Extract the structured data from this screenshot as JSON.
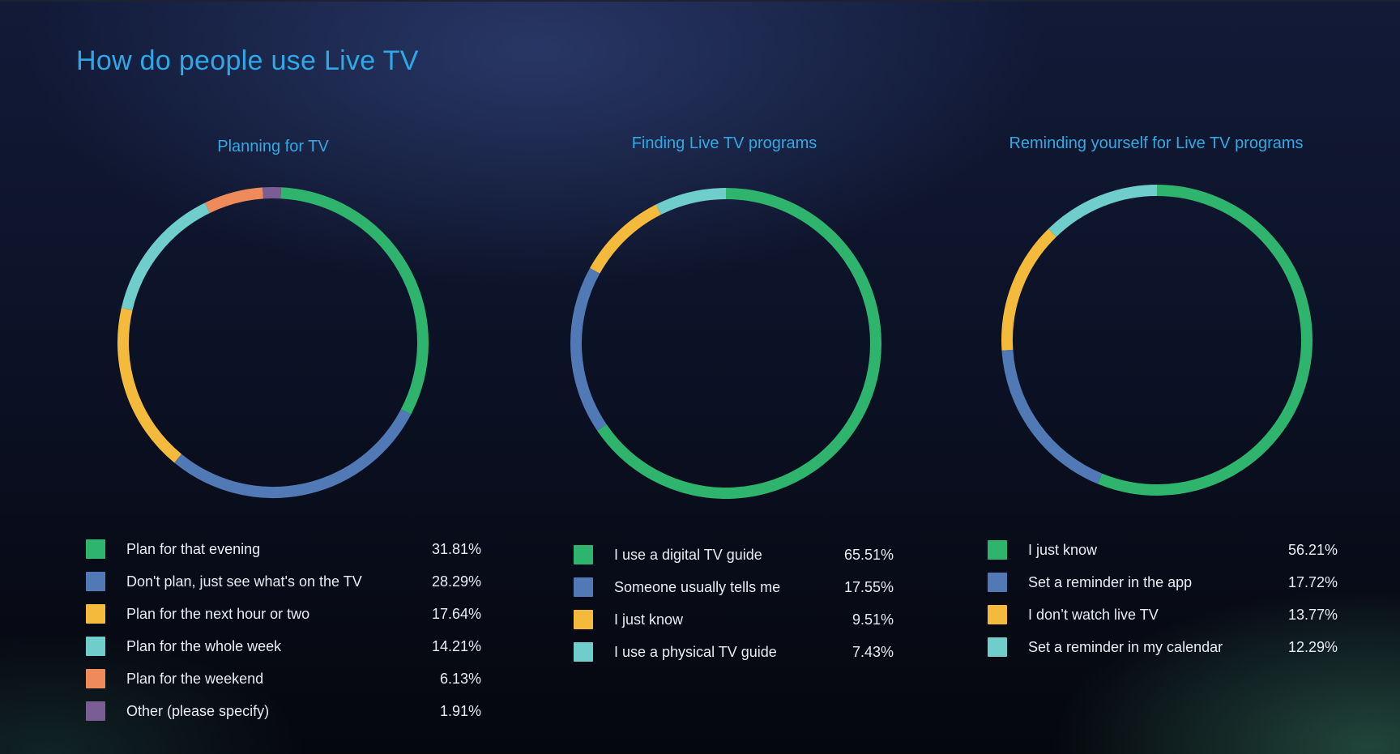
{
  "page": {
    "title": "How do people use Live TV"
  },
  "colors": {
    "green": "#2fb46d",
    "blue": "#5079b5",
    "yellow": "#f4ba3b",
    "teal": "#6fcdcb",
    "orange": "#ef8a5a",
    "purple": "#7b5d95",
    "title_blue": "#2ea8e6",
    "text": "#e8ecf4"
  },
  "chart_data": [
    {
      "type": "pie",
      "title": "Planning for TV",
      "categories": [
        "Plan for that evening",
        "Don't plan, just see what's on the TV",
        "Plan for the next hour or two",
        "Plan for the whole week",
        "Plan for the weekend",
        "Other (please specify)"
      ],
      "values": [
        31.81,
        28.29,
        17.64,
        14.21,
        6.13,
        1.91
      ],
      "labels": [
        "31.81%",
        "28.29%",
        "17.64%",
        "14.21%",
        "6.13%",
        "1.91%"
      ],
      "colors": [
        "#2fb46d",
        "#5079b5",
        "#f4ba3b",
        "#6fcdcb",
        "#ef8a5a",
        "#7b5d95"
      ],
      "start_angle": 3
    },
    {
      "type": "pie",
      "title": "Finding Live TV programs",
      "categories": [
        "I use a digital TV guide",
        "Someone usually tells me",
        "I just know",
        "I use a physical TV guide"
      ],
      "values": [
        65.51,
        17.55,
        9.51,
        7.43
      ],
      "labels": [
        "65.51%",
        "17.55%",
        "9.51%",
        "7.43%"
      ],
      "colors": [
        "#2fb46d",
        "#5079b5",
        "#f4ba3b",
        "#6fcdcb"
      ],
      "start_angle": 0
    },
    {
      "type": "pie",
      "title": "Reminding yourself for Live TV programs",
      "categories": [
        "I just know",
        "Set a reminder in the app",
        "I don’t watch live TV",
        "Set a reminder in my calendar"
      ],
      "values": [
        56.21,
        17.72,
        13.77,
        12.29
      ],
      "labels": [
        "56.21%",
        "17.72%",
        "13.77%",
        "12.29%"
      ],
      "colors": [
        "#2fb46d",
        "#5079b5",
        "#f4ba3b",
        "#6fcdcb"
      ],
      "start_angle": 0
    }
  ]
}
